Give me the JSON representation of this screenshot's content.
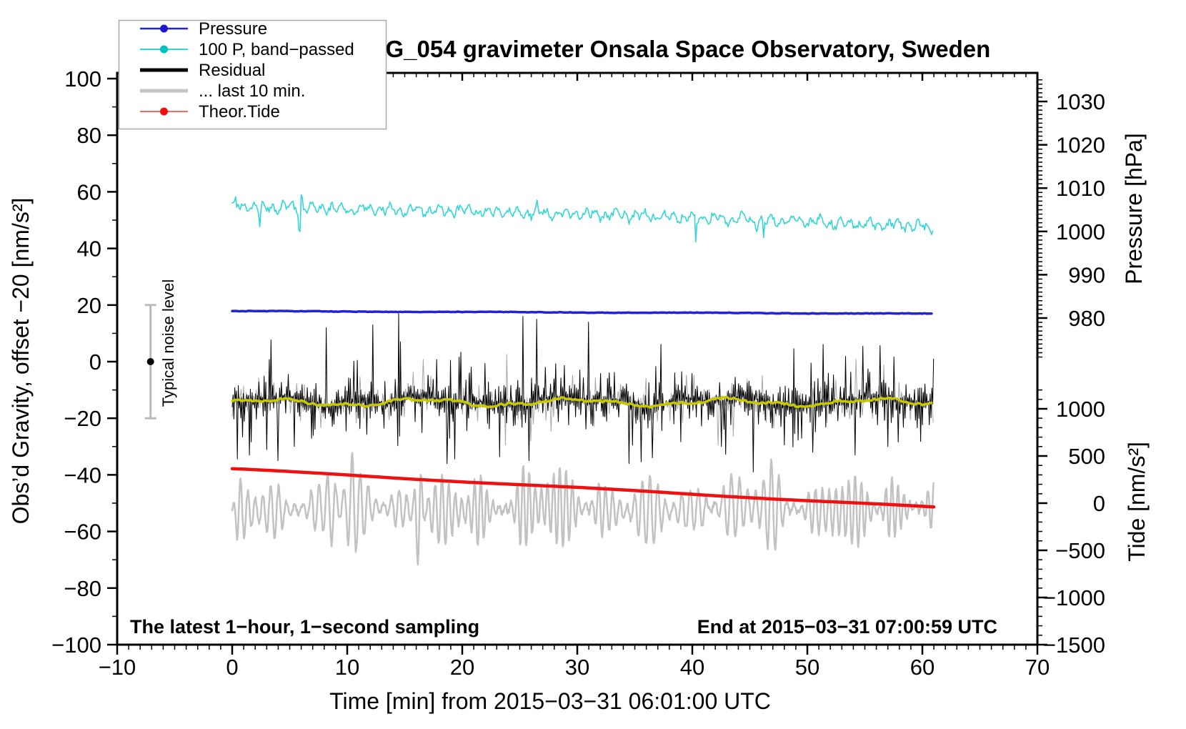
{
  "chart": {
    "title": "SCG_054 gravimeter Onsala Space Observatory, Sweden",
    "xlabel": "Time [min] from 2015−03−31 06:01:00 UTC",
    "ylabel_left": "Obs’d Gravity, offset −20 [nm/s²]",
    "ylabel_pressure": "Pressure [hPa]",
    "ylabel_tide": "Tide [nm/s²]",
    "annotation_left": "The latest 1−hour, 1−second sampling",
    "annotation_right": "End at 2015−03−31 07:00:59 UTC",
    "noise_label": "Typical noise level"
  },
  "legend": {
    "items": [
      {
        "label": "Pressure",
        "color": "#2222dd",
        "width": 2.5,
        "dot": true,
        "dot_color": "#1a1acc"
      },
      {
        "label": "100 P, band−passed",
        "color": "#33d6d6",
        "width": 2,
        "dot": true,
        "dot_color": "#00c0c0"
      },
      {
        "label": "Residual",
        "color": "#000000",
        "width": 5,
        "dot": false,
        "dot_color": "#000000"
      },
      {
        "label": "... last 10 min.",
        "color": "#c4c4c4",
        "width": 5,
        "dot": false,
        "dot_color": "#c4c4c4"
      },
      {
        "label": "Theor.Tide",
        "color": "#f26a6a",
        "width": 2,
        "dot": true,
        "dot_color": "#ee1111"
      }
    ]
  },
  "chart_data": {
    "type": "line",
    "title": "SCG_054 gravimeter Onsala Space Observatory, Sweden",
    "x_axis": {
      "label": "Time [min] from 2015−03−31 06:01:00 UTC",
      "range": [
        -10,
        70
      ],
      "major_ticks": [
        -10,
        0,
        10,
        20,
        30,
        40,
        50,
        60,
        70
      ],
      "minor_step": 1
    },
    "y_axis_left": {
      "label": "Obs’d Gravity, offset −20 [nm/s²]",
      "range": [
        -100,
        102
      ],
      "major_ticks": [
        100,
        80,
        60,
        40,
        20,
        0,
        -20,
        -40,
        -60,
        -80,
        -100
      ],
      "minor_step": 10
    },
    "y_axis_pressure": {
      "label": "Pressure [hPa]",
      "major_ticks": [
        1030,
        1020,
        1010,
        1000,
        990,
        980
      ],
      "minor_step": 1
    },
    "y_axis_tide": {
      "label": "Tide [nm/s²]",
      "major_ticks": [
        1000,
        500,
        0,
        -500,
        -1000,
        -1500
      ],
      "minor_step": 100
    },
    "grid": false,
    "legend_position": "top-left",
    "time_span_min": [
      0,
      61
    ],
    "noise_bar": {
      "x_min": -7.1,
      "center_value": 0,
      "half_width": 20,
      "color": "#bbbbbb",
      "dot_color": "#000000"
    },
    "series": [
      {
        "name": "pressure",
        "axis": "pressure",
        "color": "#2222dd",
        "width": 3.5,
        "hpa_start": 981.6,
        "hpa_end": 981.0,
        "jitter_hpa": 0.12
      },
      {
        "name": "band_passed_pressure",
        "axis": "gravity",
        "color": "#33d6d6",
        "width": 1.6,
        "mean_start": 54.8,
        "mean_end": 47.6,
        "osc_amp": 2.1,
        "jitter": 2.2,
        "spikes": [
          {
            "t": 2.4,
            "dv": -8
          },
          {
            "t": 5.85,
            "dv": -12
          },
          {
            "t": 6.05,
            "dv": 6
          },
          {
            "t": 40.3,
            "dv": -10
          },
          {
            "t": 46.2,
            "dv": -7
          }
        ]
      },
      {
        "name": "residual_gray_strand",
        "axis": "gravity",
        "color": "#a8a8a8",
        "width": 1,
        "mean": -14,
        "scale": 4.0,
        "cap": 18
      },
      {
        "name": "residual",
        "axis": "gravity",
        "color": "#000000",
        "width": 1,
        "mean": -14,
        "scale": 6.0,
        "cap": 24,
        "extremes": [
          {
            "t": 1.5,
            "v": -33
          },
          {
            "t": 4.0,
            "v": -35
          },
          {
            "t": 8.2,
            "v": 12
          },
          {
            "t": 12.2,
            "v": 13
          },
          {
            "t": 14.5,
            "v": 17
          },
          {
            "t": 18.7,
            "v": -36
          },
          {
            "t": 25.3,
            "v": 16
          },
          {
            "t": 26.5,
            "v": 15
          },
          {
            "t": 31.0,
            "v": 14
          },
          {
            "t": 34.5,
            "v": -36
          },
          {
            "t": 36.5,
            "v": -34
          },
          {
            "t": 42.5,
            "v": -30
          },
          {
            "t": 45.3,
            "v": -39
          },
          {
            "t": 50.5,
            "v": -32
          },
          {
            "t": 57.0,
            "v": -30
          }
        ]
      },
      {
        "name": "residual_smoothed",
        "axis": "gravity",
        "color": "#c8c800",
        "width": 3.5,
        "mean": -14.4
      },
      {
        "name": "theoretical_tide",
        "axis": "tide",
        "color": "#ee1111",
        "width": 4.5,
        "tide_start": 364,
        "tide_end": -45
      },
      {
        "name": "last_10_min_microseism",
        "axis": "tide",
        "color": "#c2c2c2",
        "width": 2.5,
        "center": -60,
        "carrier_period_min": 0.62,
        "amp_base": 170,
        "amp_mod1": 120,
        "amp_mod2": 90,
        "bursts": [
          {
            "t": 8.6,
            "a": 260,
            "w": 0.3
          },
          {
            "t": 10.4,
            "a": 240,
            "w": 0.3
          },
          {
            "t": 16.2,
            "a": 600,
            "w": 0.22
          },
          {
            "t": 21.3,
            "a": 150,
            "w": 0.4
          },
          {
            "t": 25.3,
            "a": 170,
            "w": 0.4
          },
          {
            "t": 28.2,
            "a": 130,
            "w": 0.8
          },
          {
            "t": 31.9,
            "a": 170,
            "w": 0.4
          },
          {
            "t": 40.9,
            "a": 150,
            "w": 0.4
          },
          {
            "t": 47.0,
            "a": 200,
            "w": 0.5
          },
          {
            "t": 52.3,
            "a": 150,
            "w": 0.5
          },
          {
            "t": 57.2,
            "a": 170,
            "w": 0.4
          }
        ]
      }
    ]
  }
}
